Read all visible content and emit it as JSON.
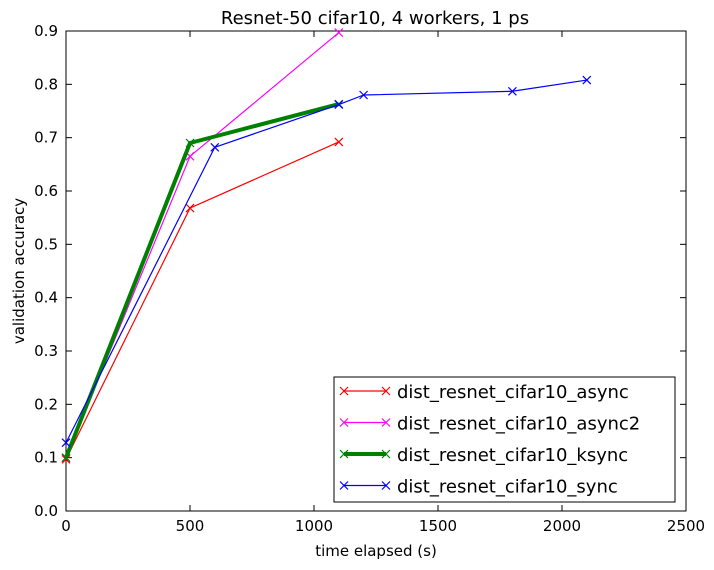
{
  "chart_data": {
    "type": "line",
    "title": "Resnet-50 cifar10, 4 workers, 1 ps",
    "xlabel": "time elapsed (s)",
    "ylabel": "validation accuracy",
    "xlim": [
      0,
      2500
    ],
    "ylim": [
      0,
      0.9
    ],
    "xticks": [
      0,
      500,
      1000,
      1500,
      2000,
      2500
    ],
    "yticks": [
      0.0,
      0.1,
      0.2,
      0.3,
      0.4,
      0.5,
      0.6,
      0.7,
      0.8,
      0.9
    ],
    "xtick_labels": [
      "0",
      "500",
      "1000",
      "1500",
      "2000",
      "2500"
    ],
    "ytick_labels": [
      "0.0",
      "0.1",
      "0.2",
      "0.3",
      "0.4",
      "0.5",
      "0.6",
      "0.7",
      "0.8",
      "0.9"
    ],
    "grid": false,
    "legend_position": "lower-right",
    "series": [
      {
        "name": "dist_resnet_cifar10_async",
        "color": "#ff0000",
        "line_width": "normal",
        "x": [
          0,
          500,
          1100
        ],
        "y": [
          0.097,
          0.568,
          0.692
        ]
      },
      {
        "name": "dist_resnet_cifar10_async2",
        "color": "#ff00ff",
        "line_width": "normal",
        "x": [
          0,
          500,
          1100
        ],
        "y": [
          0.1,
          0.665,
          0.897
        ]
      },
      {
        "name": "dist_resnet_cifar10_ksync",
        "color": "#008000",
        "line_width": "thick",
        "x": [
          0,
          500,
          1100
        ],
        "y": [
          0.1,
          0.69,
          0.763
        ]
      },
      {
        "name": "dist_resnet_cifar10_sync",
        "color": "#0000ff",
        "line_width": "normal",
        "x": [
          0,
          600,
          1100,
          1200,
          1800,
          2100
        ],
        "y": [
          0.128,
          0.682,
          0.762,
          0.78,
          0.787,
          0.808
        ]
      }
    ]
  }
}
